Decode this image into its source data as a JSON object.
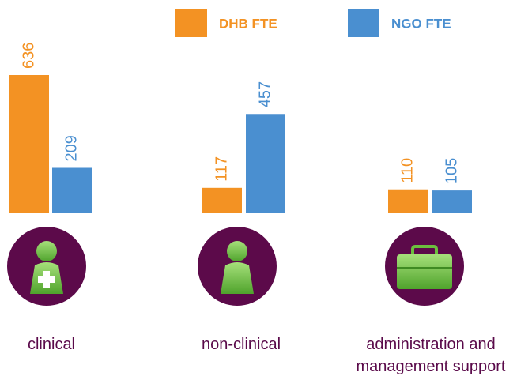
{
  "chart_data": {
    "type": "bar",
    "categories": [
      "clinical",
      "non-clinical",
      "administration and management support"
    ],
    "series": [
      {
        "name": "DHB FTE",
        "color": "#f39223",
        "values": [
          636,
          117,
          110
        ]
      },
      {
        "name": "NGO FTE",
        "color": "#4a8fd0",
        "values": [
          209,
          457,
          105
        ]
      }
    ]
  }
}
